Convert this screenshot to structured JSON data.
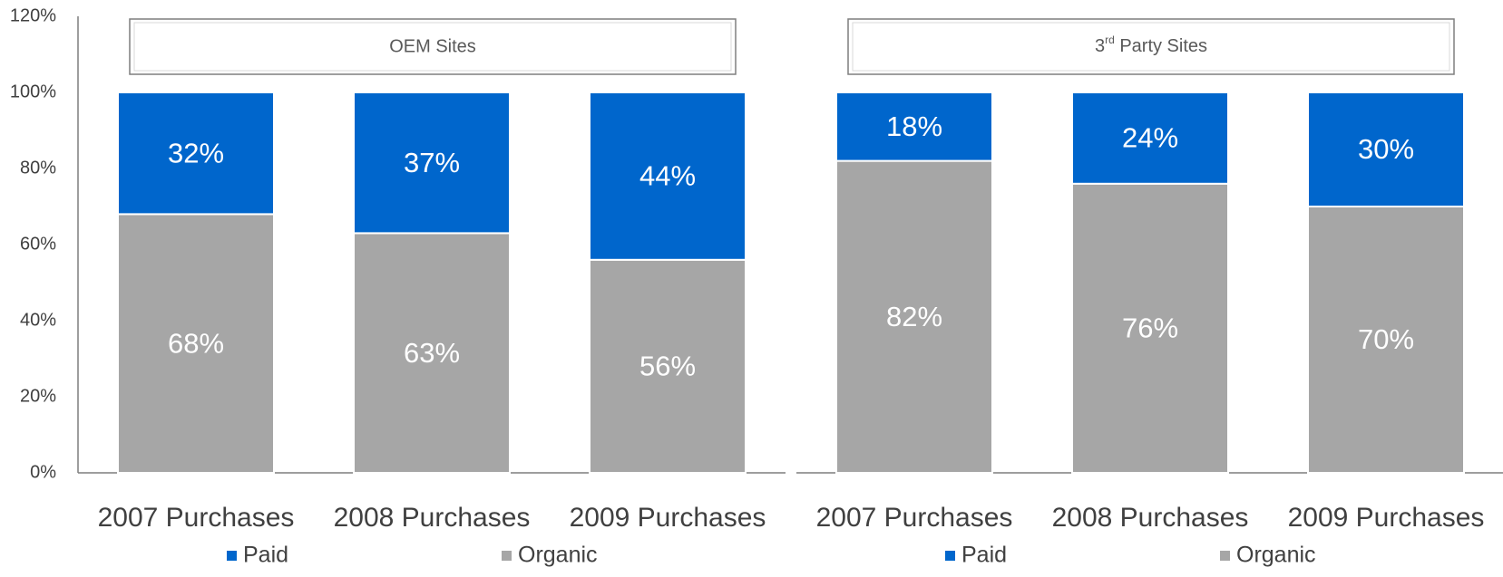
{
  "chart_data": {
    "type": "bar",
    "stacked": true,
    "ylim": [
      0,
      120
    ],
    "yticks": [
      "0%",
      "20%",
      "40%",
      "60%",
      "80%",
      "100%",
      "120%"
    ],
    "grid": false,
    "legend_position": "bottom",
    "colors": {
      "Paid": "#0066cc",
      "Organic": "#a6a6a6"
    },
    "panels": [
      {
        "title": "OEM Sites",
        "categories": [
          "2007 Purchases",
          "2008 Purchases",
          "2009 Purchases"
        ],
        "series": [
          {
            "name": "Organic",
            "values": [
              68,
              63,
              56
            ],
            "labels": [
              "68%",
              "63%",
              "56%"
            ]
          },
          {
            "name": "Paid",
            "values": [
              32,
              37,
              44
            ],
            "labels": [
              "32%",
              "37%",
              "44%"
            ]
          }
        ],
        "legend": [
          "Paid",
          "Organic"
        ]
      },
      {
        "title_main": "3",
        "title_sup": "rd",
        "title_rest": " Party Sites",
        "categories": [
          "2007 Purchases",
          "2008 Purchases",
          "2009 Purchases"
        ],
        "series": [
          {
            "name": "Organic",
            "values": [
              82,
              76,
              70
            ],
            "labels": [
              "82%",
              "76%",
              "70%"
            ]
          },
          {
            "name": "Paid",
            "values": [
              18,
              24,
              30
            ],
            "labels": [
              "18%",
              "24%",
              "30%"
            ]
          }
        ],
        "legend": [
          "Paid",
          "Organic"
        ]
      }
    ]
  }
}
